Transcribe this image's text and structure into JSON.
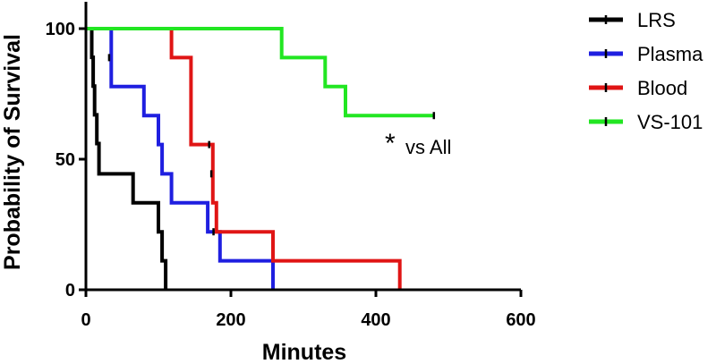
{
  "chart_data": {
    "type": "line",
    "step": true,
    "xlabel": "Minutes",
    "ylabel": "Probability of Survival",
    "xlim": [
      0,
      600
    ],
    "ylim": [
      0,
      100
    ],
    "xticks": [
      0,
      200,
      400,
      600
    ],
    "yticks": [
      0,
      50,
      100
    ],
    "x_tick_labels": [
      "0",
      "200",
      "400",
      "600"
    ],
    "y_tick_labels": [
      "0",
      "50",
      "100"
    ],
    "grid": false,
    "legend_position": "right",
    "annotation": {
      "star": "*",
      "text": "vs All",
      "x": 420,
      "y": 55
    },
    "series": [
      {
        "name": "LRS",
        "color": "#000000",
        "points": [
          [
            0,
            100
          ],
          [
            8,
            100
          ],
          [
            8,
            89
          ],
          [
            10,
            89
          ],
          [
            10,
            78
          ],
          [
            12,
            78
          ],
          [
            12,
            67
          ],
          [
            15,
            67
          ],
          [
            15,
            56
          ],
          [
            18,
            56
          ],
          [
            18,
            44.4
          ],
          [
            65,
            44.4
          ],
          [
            65,
            33.3
          ],
          [
            100,
            33.3
          ],
          [
            100,
            22.2
          ],
          [
            105,
            22.2
          ],
          [
            105,
            11.1
          ],
          [
            110,
            11.1
          ],
          [
            110,
            0
          ]
        ],
        "censor": []
      },
      {
        "name": "Plasma",
        "color": "#1f1fe0",
        "points": [
          [
            0,
            100
          ],
          [
            35,
            100
          ],
          [
            35,
            77.8
          ],
          [
            80,
            77.8
          ],
          [
            80,
            66.7
          ],
          [
            100,
            66.7
          ],
          [
            100,
            55.6
          ],
          [
            105,
            55.6
          ],
          [
            105,
            44.4
          ],
          [
            118,
            44.4
          ],
          [
            118,
            33.3
          ],
          [
            168,
            33.3
          ],
          [
            168,
            22.2
          ],
          [
            185,
            22.2
          ],
          [
            185,
            11.1
          ],
          [
            258,
            11.1
          ],
          [
            258,
            0
          ]
        ],
        "censor": [
          [
            32,
            88.9
          ]
        ]
      },
      {
        "name": "Blood",
        "color": "#e01515",
        "points": [
          [
            0,
            100
          ],
          [
            118,
            100
          ],
          [
            118,
            88.9
          ],
          [
            145,
            88.9
          ],
          [
            145,
            55.6
          ],
          [
            175,
            55.6
          ],
          [
            175,
            33.3
          ],
          [
            180,
            33.3
          ],
          [
            180,
            22.2
          ],
          [
            258,
            22.2
          ],
          [
            258,
            11.1
          ],
          [
            433,
            11.1
          ],
          [
            433,
            0
          ]
        ],
        "censor": [
          [
            170,
            55.6
          ],
          [
            173,
            44.4
          ],
          [
            176,
            22.2
          ]
        ]
      },
      {
        "name": "VS-101",
        "color": "#22e622",
        "points": [
          [
            0,
            100
          ],
          [
            270,
            100
          ],
          [
            270,
            88.9
          ],
          [
            330,
            88.9
          ],
          [
            330,
            77.8
          ],
          [
            358,
            77.8
          ],
          [
            358,
            66.7
          ],
          [
            480,
            66.7
          ]
        ],
        "censor": [
          [
            480,
            66.7
          ]
        ]
      }
    ]
  }
}
